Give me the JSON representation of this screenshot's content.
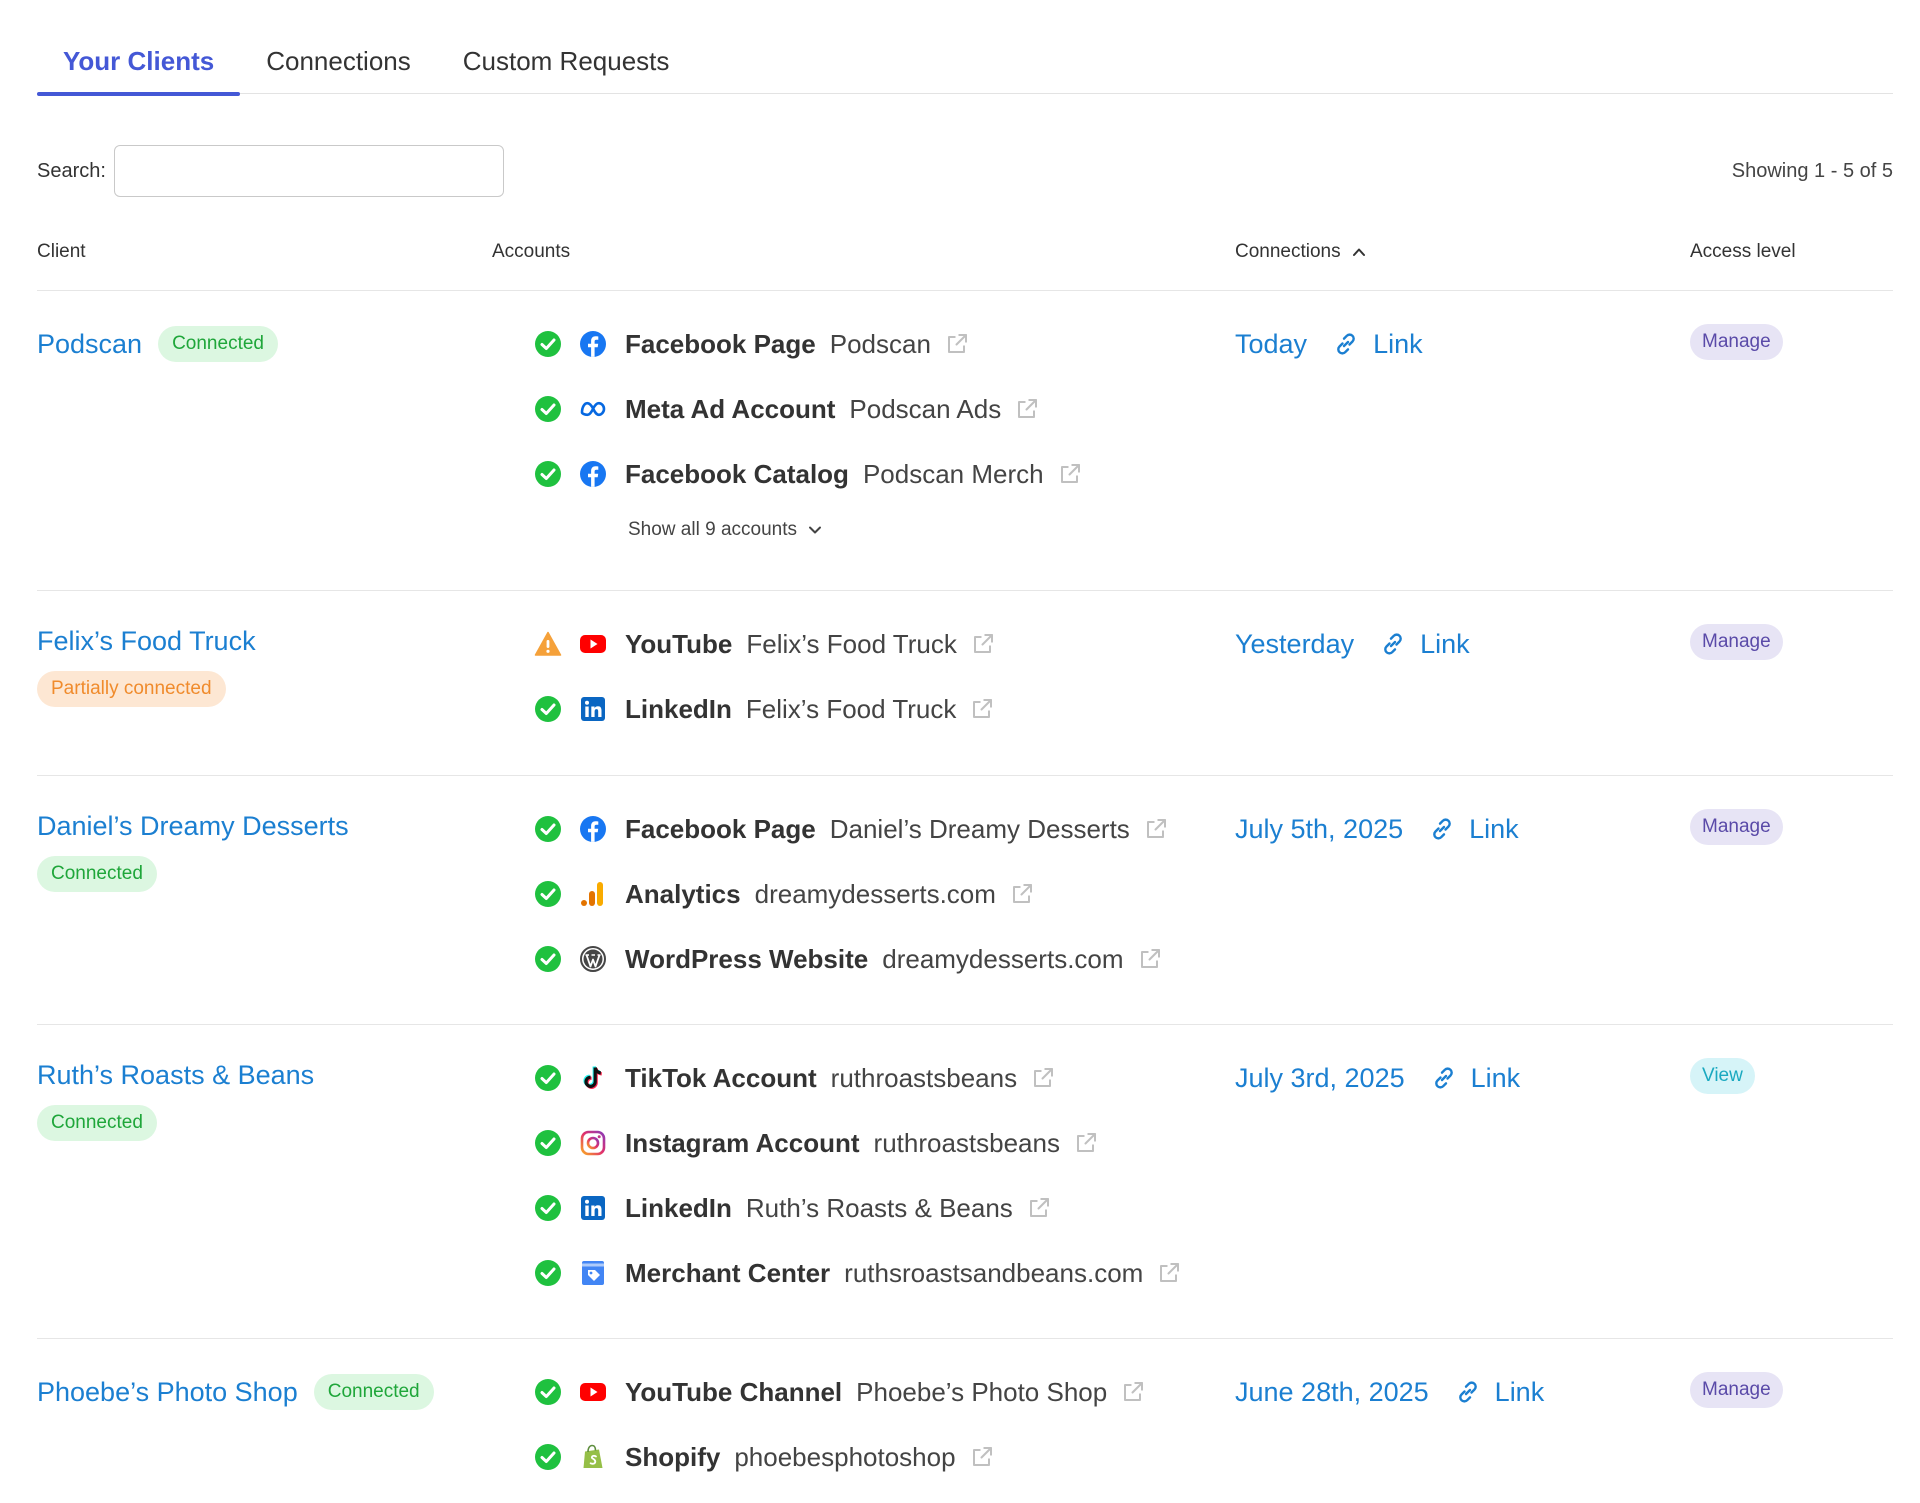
{
  "tabs": [
    {
      "label": "Your Clients",
      "active": true
    },
    {
      "label": "Connections",
      "active": false
    },
    {
      "label": "Custom Requests",
      "active": false
    }
  ],
  "search": {
    "label": "Search:",
    "placeholder": "",
    "value": ""
  },
  "showing": "Showing 1 - 5 of 5",
  "table": {
    "headers": {
      "client": "Client",
      "accounts": "Accounts",
      "connections": "Connections",
      "access_level": "Access level"
    },
    "sort": {
      "column": "Connections",
      "direction": "ascending",
      "icon": "chevron-up-icon"
    }
  },
  "colors": {
    "accent": "#4458d6",
    "link": "#1b7fd1",
    "success": "#1fc13f",
    "warning": "#f5a13a"
  },
  "rows": [
    {
      "client": "Podscan",
      "status": "Connected",
      "status_type": "ok",
      "accounts": [
        {
          "status": "check-circle-icon",
          "service": "facebook-icon",
          "type": "Facebook Page",
          "name": "Podscan"
        },
        {
          "status": "check-circle-icon",
          "service": "meta-icon",
          "type": "Meta Ad Account",
          "name": "Podscan Ads"
        },
        {
          "status": "check-circle-icon",
          "service": "facebook-icon",
          "type": "Facebook Catalog",
          "name": "Podscan Merch"
        }
      ],
      "show_all": "Show all 9 accounts",
      "connection_date": "Today",
      "link_label": "Link",
      "access": "Manage"
    },
    {
      "client": "Felix’s Food Truck",
      "status": "Partially connected",
      "status_type": "partial",
      "accounts": [
        {
          "status": "warning-icon",
          "service": "youtube-icon",
          "type": "YouTube",
          "name": "Felix’s Food Truck"
        },
        {
          "status": "check-circle-icon",
          "service": "linkedin-icon",
          "type": "LinkedIn",
          "name": "Felix’s Food Truck"
        }
      ],
      "connection_date": "Yesterday",
      "link_label": "Link",
      "access": "Manage"
    },
    {
      "client": "Daniel’s Dreamy Desserts",
      "status": "Connected",
      "status_type": "ok",
      "accounts": [
        {
          "status": "check-circle-icon",
          "service": "facebook-icon",
          "type": "Facebook Page",
          "name": "Daniel’s Dreamy Desserts"
        },
        {
          "status": "check-circle-icon",
          "service": "analytics-icon",
          "type": "Analytics",
          "name": "dreamydesserts.com"
        },
        {
          "status": "check-circle-icon",
          "service": "wordpress-icon",
          "type": "WordPress Website",
          "name": "dreamydesserts.com"
        }
      ],
      "connection_date": "July 5th, 2025",
      "link_label": "Link",
      "access": "Manage"
    },
    {
      "client": "Ruth’s Roasts & Beans",
      "status": "Connected",
      "status_type": "ok",
      "accounts": [
        {
          "status": "check-circle-icon",
          "service": "tiktok-icon",
          "type": "TikTok Account",
          "name": "ruthroastsbeans"
        },
        {
          "status": "check-circle-icon",
          "service": "instagram-icon",
          "type": "Instagram Account",
          "name": "ruthroastsbeans"
        },
        {
          "status": "check-circle-icon",
          "service": "linkedin-icon",
          "type": "LinkedIn",
          "name": "Ruth’s Roasts & Beans"
        },
        {
          "status": "check-circle-icon",
          "service": "merchant-center-icon",
          "type": "Merchant Center",
          "name": "ruthsroastsandbeans.com"
        }
      ],
      "connection_date": "July 3rd, 2025",
      "link_label": "Link",
      "access": "View"
    },
    {
      "client": "Phoebe’s Photo Shop",
      "status": "Connected",
      "status_type": "ok",
      "accounts": [
        {
          "status": "check-circle-icon",
          "service": "youtube-icon",
          "type": "YouTube Channel",
          "name": "Phoebe’s Photo Shop"
        },
        {
          "status": "check-circle-icon",
          "service": "shopify-icon",
          "type": "Shopify",
          "name": "phoebesphotoshop"
        }
      ],
      "connection_date": "June 28th, 2025",
      "link_label": "Link",
      "access": "Manage"
    }
  ]
}
